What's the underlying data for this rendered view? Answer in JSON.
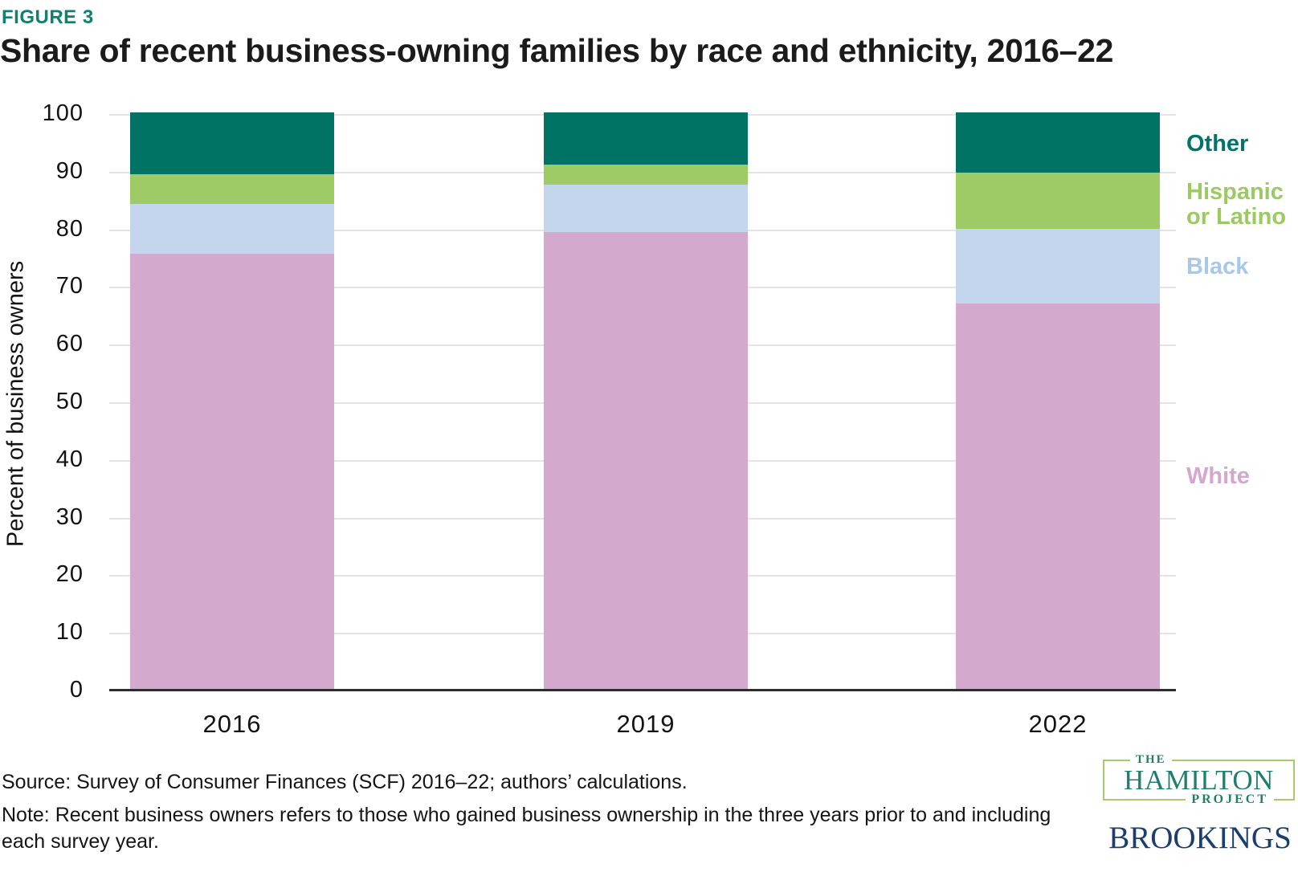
{
  "figure_label": "FIGURE 3",
  "title": "Share of recent business-owning families by race and ethnicity, 2016–22",
  "chart_data": {
    "type": "bar",
    "stacked": true,
    "categories": [
      "2016",
      "2019",
      "2022"
    ],
    "series": [
      {
        "name": "White",
        "color": "#d4a9ce",
        "values": [
          75.5,
          79.3,
          66.8
        ]
      },
      {
        "name": "Black",
        "color": "#c4d6ed",
        "values": [
          8.6,
          8.2,
          13.0
        ]
      },
      {
        "name": "Hispanic or Latino",
        "color": "#9ecb65",
        "values": [
          5.2,
          3.5,
          9.7
        ]
      },
      {
        "name": "Other",
        "color": "#007365",
        "values": [
          10.7,
          9.0,
          10.5
        ]
      }
    ],
    "title": "Share of recent business-owning families by race and ethnicity, 2016–22",
    "xlabel": "",
    "ylabel": "Percent of business owners",
    "ylim": [
      0,
      100
    ],
    "yticks": [
      0,
      10,
      20,
      30,
      40,
      50,
      60,
      70,
      80,
      90,
      100
    ],
    "grid": true,
    "legend_position": "right"
  },
  "legend": {
    "other": {
      "label": "Other",
      "color": "#00746b"
    },
    "hispanic": {
      "label": "Hispanic or Latino",
      "color": "#9cca62"
    },
    "black": {
      "label": "Black",
      "color": "#a9c8e9"
    },
    "white": {
      "label": "White",
      "color": "#d5a6ce"
    }
  },
  "source": "Source: Survey of Consumer Finances (SCF) 2016–22; authors’ calculations.",
  "note": "Note: Recent business owners refers to those who gained business ownership in the three years prior to and including each survey year.",
  "logos": {
    "hamilton": {
      "the": "THE",
      "name": "HAMILTON",
      "project": "PROJECT"
    },
    "brookings": "BROOKINGS"
  },
  "colors": {
    "figure_label": "#11806c",
    "hamilton_teal": "#1f7e6c",
    "hamilton_border": "#a6cb6b",
    "brookings_navy": "#1a3e6e",
    "axis_line": "#2d2d2d",
    "gridline": "#e4e4e4"
  }
}
